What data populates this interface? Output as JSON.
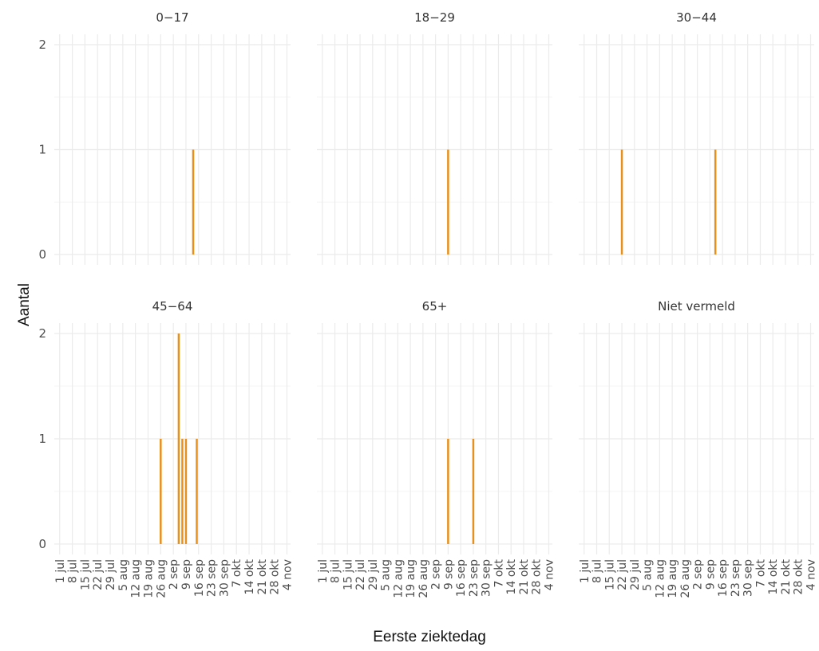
{
  "chart_data": {
    "type": "bar",
    "xlabel": "Eerste ziektedag",
    "ylabel": "Aantal",
    "ylim": [
      0,
      2
    ],
    "yticks": [
      0,
      1,
      2
    ],
    "grid": true,
    "bar_color": "#e8901c",
    "x_tick_labels": [
      "1 jul",
      "8 jul",
      "15 jul",
      "22 jul",
      "29 jul",
      "5 aug",
      "12 aug",
      "19 aug",
      "26 aug",
      "2 sep",
      "9 sep",
      "16 sep",
      "23 sep",
      "30 sep",
      "7 okt",
      "14 okt",
      "21 okt",
      "28 okt",
      "4 nov"
    ],
    "panels": [
      {
        "title": "0−17",
        "bars": [
          {
            "x": "13 sep",
            "y": 1
          }
        ]
      },
      {
        "title": "18−29",
        "bars": [
          {
            "x": "9 sep",
            "y": 1
          }
        ]
      },
      {
        "title": "30−44",
        "bars": [
          {
            "x": "22 jul",
            "y": 1
          },
          {
            "x": "12 sep",
            "y": 1
          }
        ]
      },
      {
        "title": "45−64",
        "bars": [
          {
            "x": "26 aug",
            "y": 1
          },
          {
            "x": "5 sep",
            "y": 2
          },
          {
            "x": "7 sep",
            "y": 1
          },
          {
            "x": "9 sep",
            "y": 1
          },
          {
            "x": "15 sep",
            "y": 1
          }
        ]
      },
      {
        "title": "65+",
        "bars": [
          {
            "x": "9 sep",
            "y": 1
          },
          {
            "x": "23 sep",
            "y": 1
          }
        ]
      },
      {
        "title": "Niet vermeld",
        "bars": []
      }
    ]
  }
}
